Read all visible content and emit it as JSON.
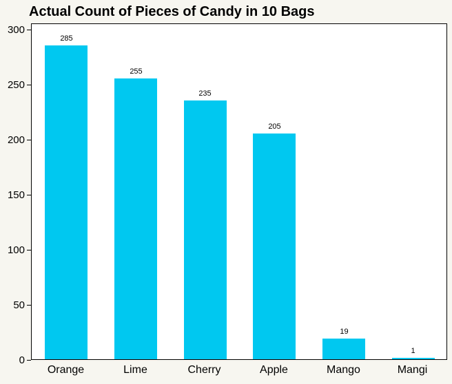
{
  "chart": {
    "title": "Actual Count of Pieces of Candy in 10 Bags"
  },
  "chart_data": {
    "type": "bar",
    "title": "Actual Count of Pieces of Candy in 10 Bags",
    "categories": [
      "Orange",
      "Lime",
      "Cherry",
      "Apple",
      "Mango",
      "Mangi"
    ],
    "values": [
      285,
      255,
      235,
      205,
      19,
      1
    ],
    "value_labels": [
      "285",
      "255",
      "235",
      "205",
      "19",
      "1"
    ],
    "xlabel": "",
    "ylabel": "",
    "ylim": [
      0,
      300
    ],
    "yticks": [
      0,
      50,
      100,
      150,
      200,
      250,
      300
    ],
    "grid": false,
    "legend": false,
    "bar_color": "#00C8F0",
    "background": "#F7F6F0",
    "plot_background": "#FFFFFF",
    "axis_color": "#000000"
  }
}
